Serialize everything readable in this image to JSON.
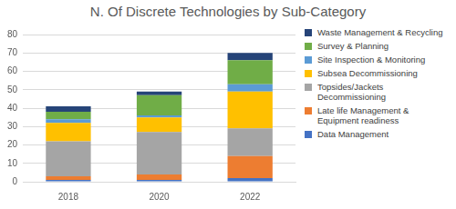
{
  "chart_data": {
    "type": "bar",
    "title": "N. Of Discrete Technologies by Sub-Category",
    "categories": [
      "2018",
      "2020",
      "2022"
    ],
    "stacked": true,
    "grid": true,
    "legend": "right",
    "ylim": [
      0,
      80
    ],
    "yticks": [
      0,
      10,
      20,
      30,
      40,
      50,
      60,
      70,
      80
    ],
    "series": [
      {
        "name": "Data Management",
        "color": "#4472c4",
        "values": [
          1,
          1,
          2
        ]
      },
      {
        "name": "Late life Management & Equipment readiness",
        "color": "#ed7d31",
        "values": [
          2,
          3,
          12
        ]
      },
      {
        "name": "Topsides/Jackets Decommissioning",
        "color": "#a5a5a5",
        "values": [
          19,
          23,
          15
        ]
      },
      {
        "name": "Subsea Decommissioning",
        "color": "#ffc000",
        "values": [
          10,
          8,
          20
        ]
      },
      {
        "name": "Site Inspection & Monitoring",
        "color": "#5b9bd5",
        "values": [
          2,
          1,
          4
        ]
      },
      {
        "name": "Survey & Planning",
        "color": "#70ad47",
        "values": [
          4,
          11,
          13
        ]
      },
      {
        "name": "Waste Management & Recycling",
        "color": "#264478",
        "values": [
          3,
          2,
          4
        ]
      }
    ]
  }
}
